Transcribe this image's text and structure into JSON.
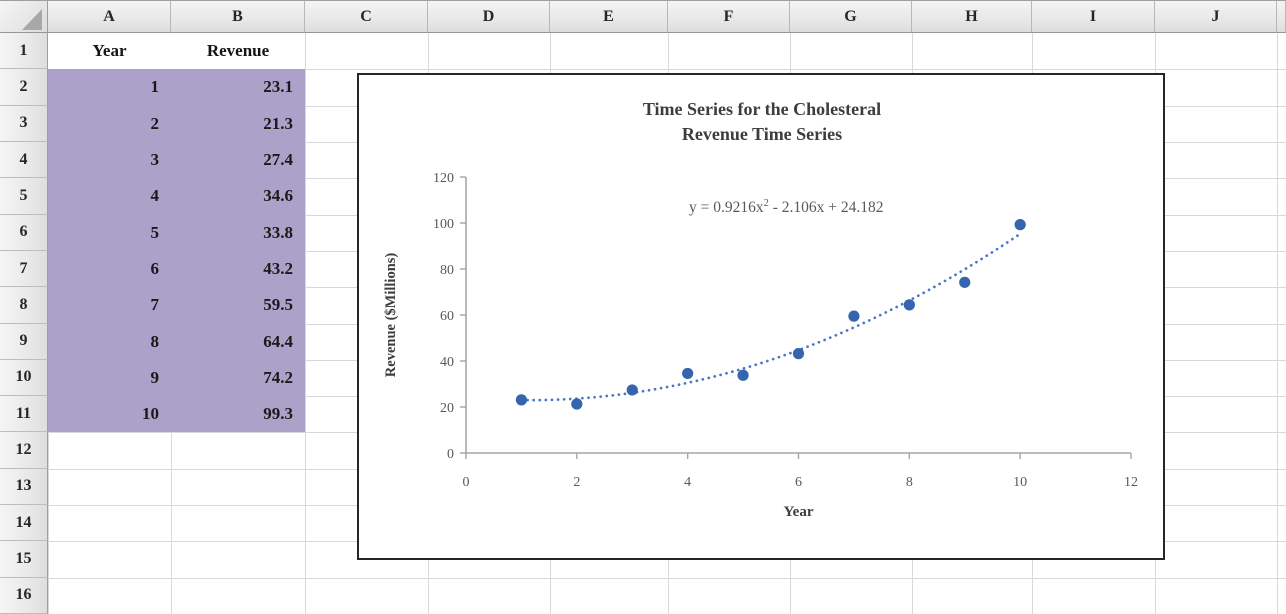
{
  "spreadsheet": {
    "column_letters": [
      "A",
      "B",
      "C",
      "D",
      "E",
      "F",
      "G",
      "H",
      "I",
      "J"
    ],
    "row_numbers": [
      "1",
      "2",
      "3",
      "4",
      "5",
      "6",
      "7",
      "8",
      "9",
      "10",
      "11",
      "12",
      "13",
      "14",
      "15",
      "16"
    ],
    "header_row": {
      "year": "Year",
      "revenue": "Revenue"
    },
    "rows": [
      {
        "year": "1",
        "revenue": "23.1"
      },
      {
        "year": "2",
        "revenue": "21.3"
      },
      {
        "year": "3",
        "revenue": "27.4"
      },
      {
        "year": "4",
        "revenue": "34.6"
      },
      {
        "year": "5",
        "revenue": "33.8"
      },
      {
        "year": "6",
        "revenue": "43.2"
      },
      {
        "year": "7",
        "revenue": "59.5"
      },
      {
        "year": "8",
        "revenue": "64.4"
      },
      {
        "year": "9",
        "revenue": "74.2"
      },
      {
        "year": "10",
        "revenue": "99.3"
      }
    ],
    "selection_fill": "#aba1c9"
  },
  "chart_data": {
    "type": "scatter",
    "title_lines": [
      "Time Series for the Cholesteral",
      "Revenue Time Series"
    ],
    "xlabel": "Year",
    "ylabel": "Revenue ($Millions)",
    "x": [
      1,
      2,
      3,
      4,
      5,
      6,
      7,
      8,
      9,
      10
    ],
    "y": [
      23.1,
      21.3,
      27.4,
      34.6,
      33.8,
      43.2,
      59.5,
      64.4,
      74.2,
      99.3
    ],
    "xlim": [
      0,
      12
    ],
    "ylim": [
      0,
      120
    ],
    "xticks": [
      "0",
      "2",
      "4",
      "6",
      "8",
      "10",
      "12"
    ],
    "yticks": [
      "0",
      "20",
      "40",
      "60",
      "80",
      "100",
      "120"
    ],
    "grid": "off",
    "legend": "none",
    "equation": {
      "base": "y = 0.9216x",
      "sup": "2",
      "rest": " - 2.106x + 24.182"
    },
    "trendline": {
      "type": "quadratic",
      "a": 0.9216,
      "b": -2.106,
      "c": 24.182,
      "x_start": 1,
      "x_end": 10,
      "style": "dotted"
    },
    "point_color": "#3465ae",
    "trend_color": "#4a77c4",
    "axis_color": "#a6a6a6",
    "tick_label_color": "#595959",
    "title_color": "#3d3d3d"
  }
}
